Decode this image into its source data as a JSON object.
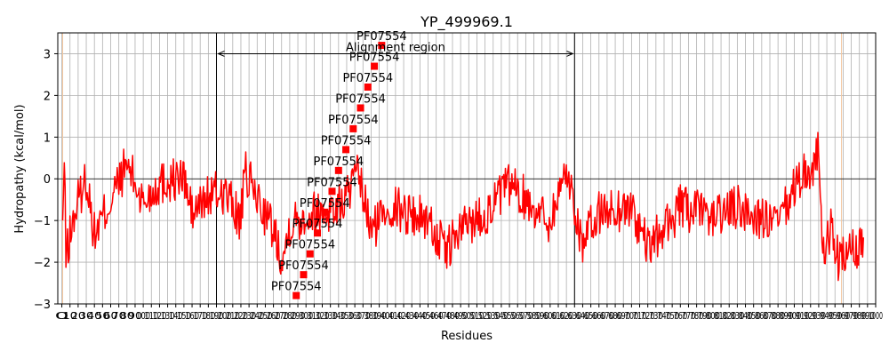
{
  "chart_data": {
    "type": "line",
    "title": "YP_499969.1",
    "xlabel": "Residues",
    "ylabel": "Hydropathy (kcal/mol)",
    "xlim": [
      -5,
      1000
    ],
    "ylim": [
      -3,
      3.5
    ],
    "yticks": [
      -3,
      -2,
      -1,
      0,
      1,
      2,
      3
    ],
    "xtick_step": 10,
    "xtick_labels_legible": false,
    "grid": true,
    "series": [
      {
        "color": "#ff0000",
        "x_start": 1,
        "x_end": 985,
        "anchors": [
          [
            1,
            -1.0
          ],
          [
            3,
            1.4
          ],
          [
            5,
            -2.7
          ],
          [
            12,
            -1.5
          ],
          [
            20,
            -0.3
          ],
          [
            30,
            0.7
          ],
          [
            40,
            -1.8
          ],
          [
            60,
            -0.3
          ],
          [
            80,
            1.3
          ],
          [
            100,
            -0.4
          ],
          [
            120,
            0.5
          ],
          [
            150,
            0.7
          ],
          [
            160,
            -0.9
          ],
          [
            180,
            -0.1
          ],
          [
            200,
            0.1
          ],
          [
            220,
            -1.2
          ],
          [
            225,
            0.9
          ],
          [
            260,
            -1.6
          ],
          [
            272,
            -2.8
          ],
          [
            280,
            -1.3
          ],
          [
            300,
            -0.9
          ],
          [
            340,
            -0.6
          ],
          [
            365,
            0.8
          ],
          [
            380,
            -1.7
          ],
          [
            400,
            -0.5
          ],
          [
            450,
            -1.1
          ],
          [
            470,
            -2.5
          ],
          [
            500,
            -1.2
          ],
          [
            520,
            -0.9
          ],
          [
            550,
            0.4
          ],
          [
            600,
            -1.2
          ],
          [
            620,
            1.1
          ],
          [
            640,
            -2.2
          ],
          [
            660,
            -0.8
          ],
          [
            700,
            -0.6
          ],
          [
            720,
            -2.4
          ],
          [
            760,
            -0.6
          ],
          [
            800,
            -1.0
          ],
          [
            830,
            -0.6
          ],
          [
            880,
            -1.4
          ],
          [
            910,
            1.0
          ],
          [
            920,
            0.8
          ],
          [
            930,
            2.1
          ],
          [
            935,
            -3.0
          ],
          [
            945,
            -1.5
          ],
          [
            955,
            -3.0
          ],
          [
            985,
            -2.2
          ]
        ],
        "noise_amplitude": 0.55
      }
    ],
    "vlines": [
      190,
      630
    ],
    "hline": 0,
    "annotations": [
      {
        "text": "Alignment region",
        "x": 410,
        "y": 3.0,
        "arrow_from": 190,
        "arrow_to": 630
      },
      {
        "text": "PF07554",
        "x": 288,
        "y": -2.8
      },
      {
        "text": "PF07554",
        "x": 297,
        "y": -2.3
      },
      {
        "text": "PF07554",
        "x": 305,
        "y": -1.8
      },
      {
        "text": "PF07554",
        "x": 314,
        "y": -1.3
      },
      {
        "text": "PF07554",
        "x": 323,
        "y": -0.8
      },
      {
        "text": "PF07554",
        "x": 332,
        "y": -0.3
      },
      {
        "text": "PF07554",
        "x": 340,
        "y": 0.2
      },
      {
        "text": "PF07554",
        "x": 349,
        "y": 0.7
      },
      {
        "text": "PF07554",
        "x": 358,
        "y": 1.2
      },
      {
        "text": "PF07554",
        "x": 367,
        "y": 1.7
      },
      {
        "text": "PF07554",
        "x": 376,
        "y": 2.2
      },
      {
        "text": "PF07554",
        "x": 384,
        "y": 2.7
      },
      {
        "text": "PF07554",
        "x": 393,
        "y": 3.2
      }
    ],
    "colors": {
      "line": "#ff0000",
      "grid": "#b0b0b0",
      "axes": "#000000",
      "marker": "#ff0000",
      "domain_edge": "#f4c8a0"
    }
  }
}
